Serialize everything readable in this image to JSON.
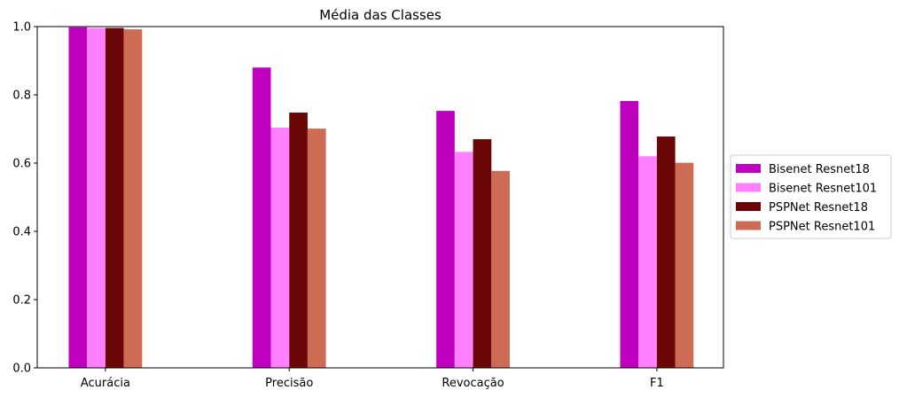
{
  "chart_data": {
    "type": "bar",
    "title": "Média das Classes",
    "xlabel": "",
    "ylabel": "",
    "categories": [
      "Acurácia",
      "Precisão",
      "Revocação",
      "F1"
    ],
    "ylim": [
      0,
      1.0
    ],
    "yticks": [
      "0.0",
      "0.2",
      "0.4",
      "0.6",
      "0.8",
      "1.0"
    ],
    "legend_position": "center-right-outside",
    "grid": false,
    "series": [
      {
        "name": "Bisenet Resnet18",
        "color": "#bf00bf",
        "values": [
          0.998,
          0.88,
          0.753,
          0.782
        ]
      },
      {
        "name": "Bisenet Resnet101",
        "color": "#ff80ff",
        "values": [
          0.996,
          0.704,
          0.633,
          0.62
        ]
      },
      {
        "name": "PSPNet Resnet18",
        "color": "#6b0606",
        "values": [
          0.996,
          0.748,
          0.67,
          0.678
        ]
      },
      {
        "name": "PSPNet Resnet101",
        "color": "#cd6b55",
        "values": [
          0.992,
          0.701,
          0.577,
          0.601
        ]
      }
    ]
  }
}
